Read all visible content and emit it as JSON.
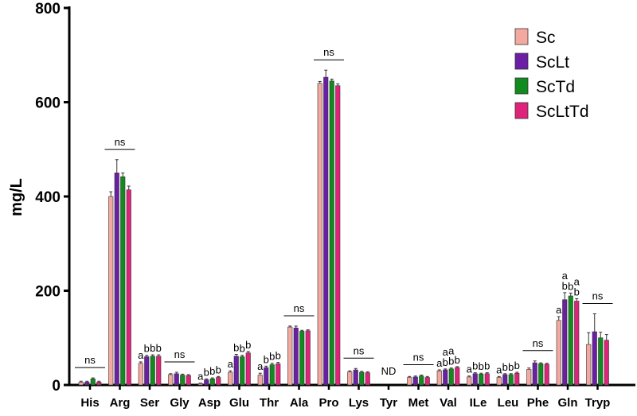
{
  "chart_data": {
    "type": "bar",
    "ylabel": "mg/L",
    "ylim": [
      0,
      800
    ],
    "yticks": [
      0,
      200,
      400,
      600,
      800
    ],
    "categories": [
      "His",
      "Arg",
      "Ser",
      "Gly",
      "Asp",
      "Glu",
      "Thr",
      "Ala",
      "Pro",
      "Lys",
      "Tyr",
      "Met",
      "Val",
      "ILe",
      "Leu",
      "Phe",
      "Gln",
      "Tryp"
    ],
    "series": [
      {
        "name": "Sc",
        "color": "#f4a9a0",
        "values": [
          6,
          400,
          46,
          22,
          3,
          27,
          21,
          123,
          640,
          28,
          0,
          16,
          30,
          17,
          16,
          33,
          137,
          86
        ],
        "errors": [
          2,
          10,
          3,
          2,
          1,
          3,
          4,
          2,
          4,
          2,
          0,
          2,
          2,
          2,
          2,
          3,
          8,
          25
        ]
      },
      {
        "name": "ScLt",
        "color": "#6a1fa5",
        "values": [
          6,
          450,
          60,
          24,
          11,
          61,
          37,
          121,
          653,
          32,
          0,
          17,
          32,
          24,
          22,
          47,
          181,
          113
        ],
        "errors": [
          2,
          28,
          3,
          3,
          2,
          4,
          3,
          4,
          15,
          3,
          0,
          2,
          2,
          2,
          2,
          4,
          15,
          38
        ]
      },
      {
        "name": "ScTd",
        "color": "#118a1e",
        "values": [
          13,
          442,
          61,
          21,
          13,
          60,
          43,
          114,
          645,
          27,
          0,
          19,
          34,
          23,
          22,
          45,
          189,
          100
        ],
        "errors": [
          2,
          8,
          3,
          2,
          2,
          3,
          3,
          2,
          4,
          2,
          0,
          2,
          2,
          2,
          2,
          2,
          6,
          12
        ]
      },
      {
        "name": "ScLtTd",
        "color": "#e0237a",
        "values": [
          6,
          414,
          61,
          20,
          16,
          68,
          45,
          115,
          635,
          26,
          0,
          16,
          37,
          24,
          25,
          44,
          178,
          95
        ],
        "errors": [
          2,
          8,
          3,
          2,
          2,
          3,
          3,
          2,
          4,
          2,
          0,
          2,
          2,
          2,
          2,
          2,
          5,
          12
        ]
      }
    ],
    "annotations": [
      {
        "category": "His",
        "type": "ns"
      },
      {
        "category": "Arg",
        "type": "ns"
      },
      {
        "category": "Ser",
        "type": "letters",
        "letters": [
          "a",
          "b",
          "b",
          "b"
        ]
      },
      {
        "category": "Gly",
        "type": "ns"
      },
      {
        "category": "Asp",
        "type": "letters",
        "letters": [
          "a",
          "b",
          "b",
          "b"
        ]
      },
      {
        "category": "Glu",
        "type": "letters",
        "letters": [
          "a",
          "b",
          "b",
          "b"
        ]
      },
      {
        "category": "Thr",
        "type": "letters",
        "letters": [
          "a",
          "b",
          "b",
          "b"
        ]
      },
      {
        "category": "Ala",
        "type": "ns"
      },
      {
        "category": "Pro",
        "type": "ns"
      },
      {
        "category": "Lys",
        "type": "ns"
      },
      {
        "category": "Tyr",
        "type": "text",
        "text": "ND"
      },
      {
        "category": "Met",
        "type": "ns"
      },
      {
        "category": "Val",
        "type": "letters",
        "letters": [
          "a",
          "ab",
          "ab",
          "b"
        ]
      },
      {
        "category": "ILe",
        "type": "letters",
        "letters": [
          "a",
          "b",
          "b",
          "b"
        ]
      },
      {
        "category": "Leu",
        "type": "letters",
        "letters": [
          "a",
          "b",
          "b",
          "b"
        ]
      },
      {
        "category": "Phe",
        "type": "ns"
      },
      {
        "category": "Gln",
        "type": "letters",
        "letters": [
          "a",
          "ab",
          "b",
          "ab"
        ]
      },
      {
        "category": "Tryp",
        "type": "ns"
      }
    ],
    "ns_label": "ns",
    "legend_position": "top-right",
    "grid": false
  }
}
